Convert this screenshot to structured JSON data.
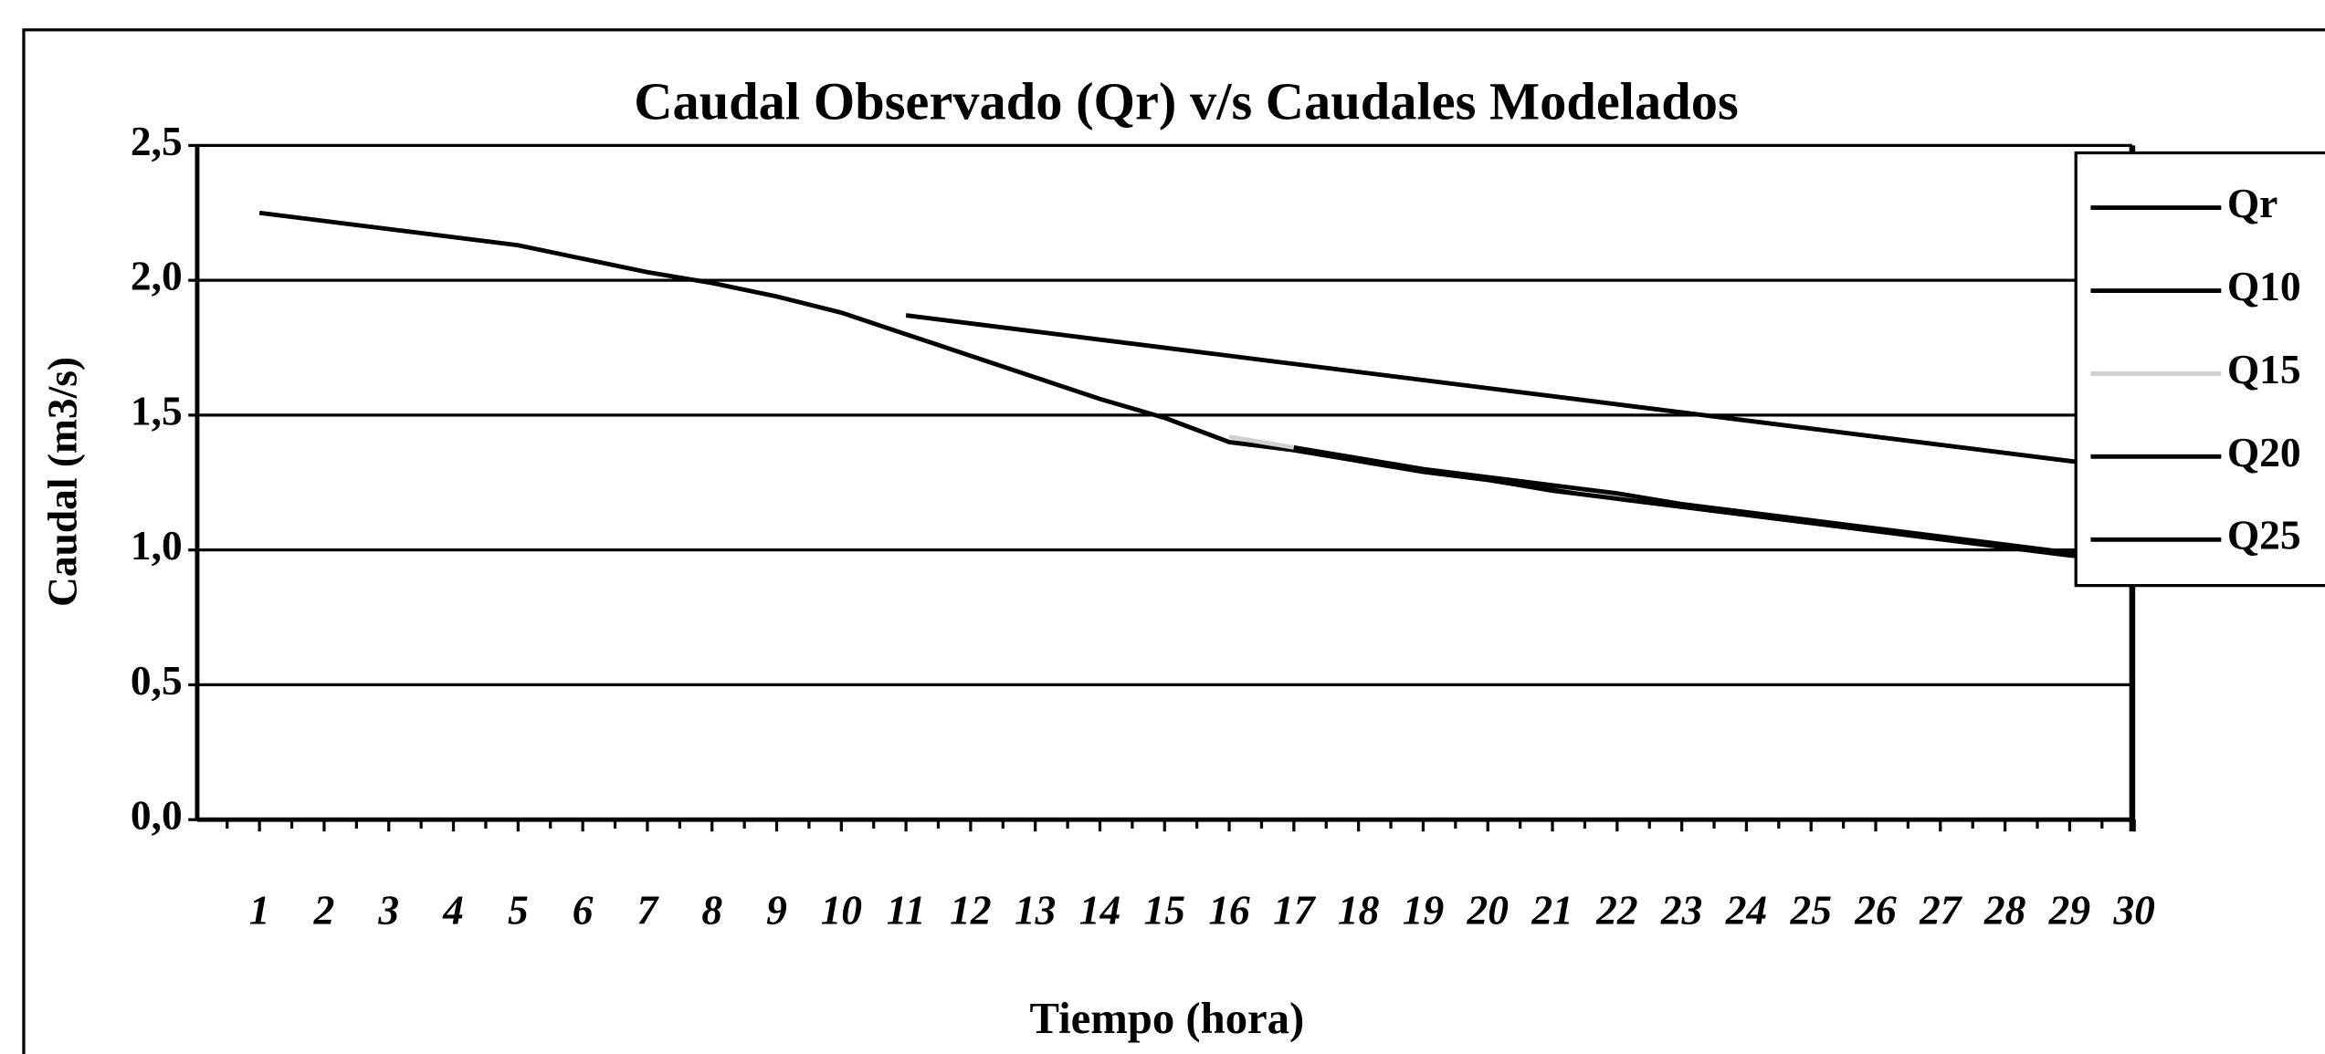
{
  "chart_data": {
    "type": "line",
    "title": "Caudal Observado (Qr) v/s Caudales Modelados",
    "x_label": "Tiempo (hora)",
    "y_label": "Caudal (m3/s)",
    "categories": [
      1,
      2,
      3,
      4,
      5,
      6,
      7,
      8,
      9,
      10,
      11,
      12,
      13,
      14,
      15,
      16,
      17,
      18,
      19,
      20,
      21,
      22,
      23,
      24,
      25,
      26,
      27,
      28,
      29,
      30
    ],
    "series": [
      {
        "name": "Qr",
        "color": "#000000",
        "values": [
          2.25,
          2.22,
          2.19,
          2.16,
          2.13,
          2.08,
          2.03,
          1.99,
          1.94,
          1.88,
          1.8,
          1.72,
          1.64,
          1.56,
          1.49,
          1.4,
          1.37,
          1.33,
          1.29,
          1.26,
          1.23,
          1.19,
          1.16,
          1.13,
          1.1,
          1.07,
          1.04,
          1.01,
          0.98,
          0.96
        ]
      },
      {
        "name": "Q10",
        "color": "#000000",
        "values": [
          null,
          null,
          null,
          null,
          null,
          null,
          null,
          null,
          null,
          null,
          1.87,
          1.84,
          1.81,
          1.78,
          1.75,
          1.72,
          1.69,
          1.66,
          1.63,
          1.6,
          1.57,
          1.54,
          1.51,
          1.48,
          1.45,
          1.42,
          1.39,
          1.36,
          1.33,
          1.3
        ]
      },
      {
        "name": "Q15",
        "color": "#d0d0d0",
        "values": [
          null,
          null,
          null,
          null,
          null,
          null,
          null,
          null,
          null,
          null,
          null,
          null,
          null,
          null,
          null,
          1.42,
          1.38,
          1.34,
          1.3,
          1.27,
          1.24,
          1.2,
          1.17,
          1.14,
          1.11,
          1.08,
          1.05,
          1.02,
          0.99,
          0.97
        ]
      },
      {
        "name": "Q20",
        "color": "#000000",
        "values": [
          null,
          null,
          null,
          null,
          null,
          null,
          null,
          null,
          null,
          null,
          null,
          null,
          null,
          null,
          null,
          null,
          1.38,
          1.34,
          1.3,
          1.27,
          1.24,
          1.21,
          1.17,
          1.14,
          1.11,
          1.08,
          1.05,
          1.02,
          0.99,
          0.97
        ]
      },
      {
        "name": "Q25",
        "color": "#000000",
        "values": [
          null,
          null,
          null,
          null,
          null,
          null,
          null,
          null,
          null,
          null,
          null,
          null,
          null,
          null,
          null,
          null,
          1.38,
          1.33,
          1.29,
          1.26,
          1.22,
          1.19,
          1.16,
          1.13,
          1.1,
          1.07,
          1.04,
          1.01,
          0.98,
          0.96
        ]
      }
    ],
    "ylim": [
      0,
      2.5
    ],
    "yticks": [
      {
        "value": 0,
        "label": "0,0"
      },
      {
        "value": 0.5,
        "label": "0,5"
      },
      {
        "value": 1,
        "label": "1,0"
      },
      {
        "value": 1.5,
        "label": "1,5"
      },
      {
        "value": 2,
        "label": "2,0"
      },
      {
        "value": 2.5,
        "label": "2,5"
      }
    ],
    "grid": true,
    "legend": "right"
  }
}
